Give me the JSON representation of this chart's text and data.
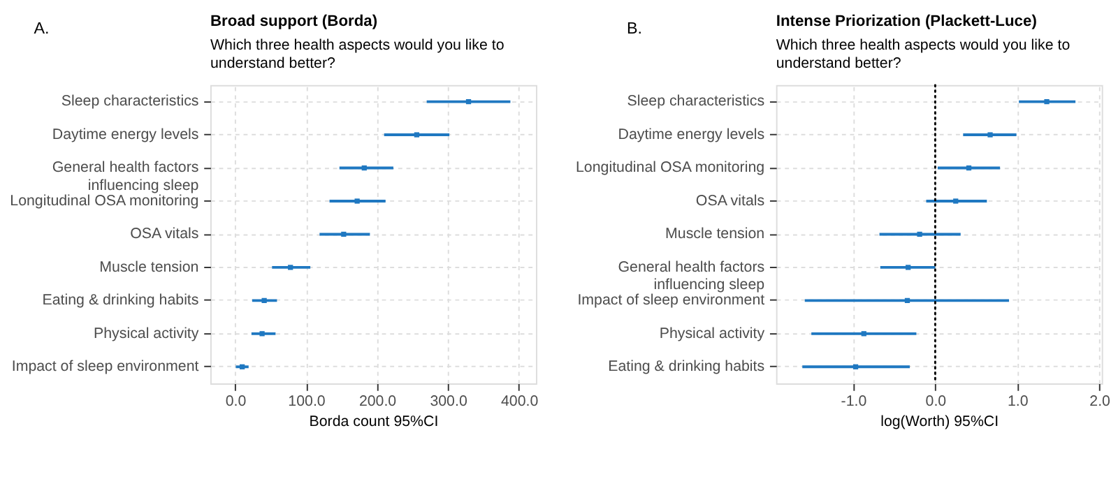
{
  "chart_data": [
    {
      "type": "scatter",
      "orientation": "horizontal",
      "title": "Broad support (Borda)",
      "subtitle": "Which three health aspects would you like to understand better?",
      "xlabel": "Borda count 95%CI",
      "annotations": [
        "A."
      ],
      "categories": [
        "Sleep characteristics",
        "Daytime energy levels",
        "General health factors influencing sleep",
        "Longitudinal OSA monitoring",
        "OSA vitals",
        "Muscle tension",
        "Eating & drinking habits",
        "Physical activity",
        "Impact of sleep environment"
      ],
      "values": [
        329,
        256,
        182,
        172,
        153,
        78,
        41,
        38,
        10
      ],
      "errors": [
        [
          270,
          388
        ],
        [
          210,
          302
        ],
        [
          147,
          223
        ],
        [
          133,
          212
        ],
        [
          119,
          190
        ],
        [
          52,
          106
        ],
        [
          24,
          59
        ],
        [
          23,
          57
        ],
        [
          1,
          19
        ]
      ],
      "color": "#1f78c1",
      "marker": "square",
      "grid": true,
      "xlim": [
        -35,
        424
      ],
      "xticks": [
        {
          "value": 0,
          "label": "0.0"
        },
        {
          "value": 100,
          "label": "100.0"
        },
        {
          "value": 200,
          "label": "200.0"
        },
        {
          "value": 300,
          "label": "300.0"
        },
        {
          "value": 400,
          "label": "400.0"
        }
      ]
    },
    {
      "type": "scatter",
      "orientation": "horizontal",
      "title": "Intense Priorization (Plackett-Luce)",
      "subtitle": "Which three health aspects would you like to understand better?",
      "xlabel": "log(Worth) 95%CI",
      "annotations": [
        "B."
      ],
      "categories": [
        "Sleep characteristics",
        "Daytime energy levels",
        "Longitudinal OSA monitoring",
        "OSA vitals",
        "Muscle tension",
        "General health factors influencing sleep",
        "Impact of sleep environment",
        "Physical activity",
        "Eating & drinking habits"
      ],
      "values": [
        1.36,
        0.67,
        0.41,
        0.25,
        -0.19,
        -0.33,
        -0.34,
        -0.87,
        -0.97
      ],
      "errors": [
        [
          1.02,
          1.71
        ],
        [
          0.34,
          0.99
        ],
        [
          0.03,
          0.79
        ],
        [
          -0.11,
          0.63
        ],
        [
          -0.68,
          0.31
        ],
        [
          -0.67,
          0
        ],
        [
          -1.59,
          0.9
        ],
        [
          -1.51,
          -0.23
        ],
        [
          -1.62,
          -0.31
        ]
      ],
      "color": "#1f78c1",
      "marker": "square",
      "grid": true,
      "xlim": [
        -1.94,
        2.03
      ],
      "xticks": [
        {
          "value": -1,
          "label": "-1.0"
        },
        {
          "value": 0,
          "label": "0.0"
        },
        {
          "value": 1,
          "label": "1.0"
        },
        {
          "value": 2,
          "label": "2.0"
        }
      ],
      "ref_lines": [
        {
          "axis": "x",
          "value": 0,
          "color": "#000000",
          "line_style": "dotted"
        }
      ]
    }
  ]
}
